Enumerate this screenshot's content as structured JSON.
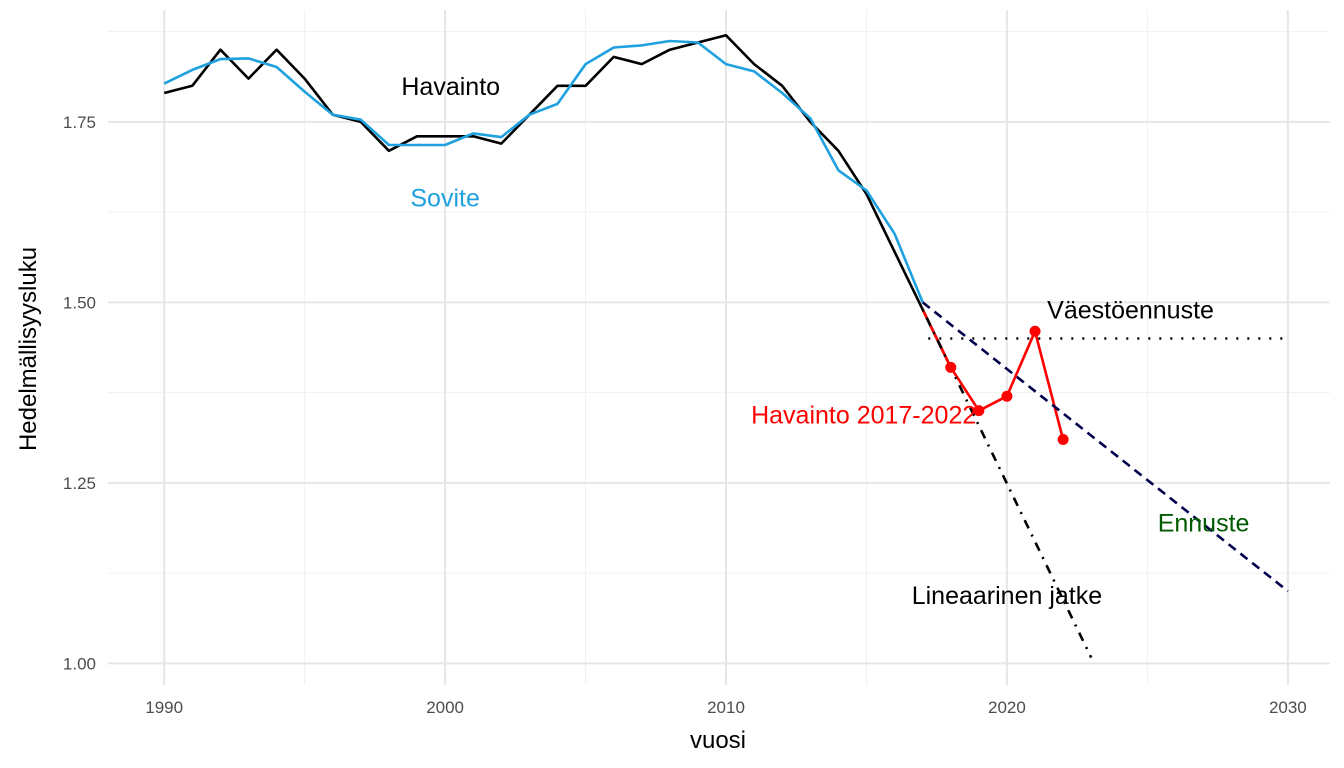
{
  "chart_data": {
    "type": "line",
    "title": "",
    "xlabel": "vuosi",
    "ylabel": "Hedelmällisyysluku",
    "xlim": [
      1988.0,
      2031.5
    ],
    "ylim": [
      0.97,
      1.905
    ],
    "grid": true,
    "x_ticks": [
      {
        "value": 1990,
        "label": "1990"
      },
      {
        "value": 2000,
        "label": "2000"
      },
      {
        "value": 2010,
        "label": "2010"
      },
      {
        "value": 2020,
        "label": "2020"
      },
      {
        "value": 2030,
        "label": "2030"
      }
    ],
    "y_ticks": [
      {
        "value": 1.0,
        "label": "1.00"
      },
      {
        "value": 1.25,
        "label": "1.25"
      },
      {
        "value": 1.5,
        "label": "1.50"
      },
      {
        "value": 1.75,
        "label": "1.75"
      }
    ],
    "x_minor": [
      1995,
      2005,
      2015,
      2025
    ],
    "y_minor": [
      1.125,
      1.375,
      1.625,
      1.875
    ],
    "series": [
      {
        "key": "havainto",
        "color": "#000000",
        "style": "solid",
        "x": [
          1990,
          1991,
          1992,
          1993,
          1994,
          1995,
          1996,
          1997,
          1998,
          1999,
          2000,
          2001,
          2002,
          2003,
          2004,
          2005,
          2006,
          2007,
          2008,
          2009,
          2010,
          2011,
          2012,
          2013,
          2014,
          2015,
          2016,
          2017,
          2018
        ],
        "y": [
          1.79,
          1.8,
          1.85,
          1.81,
          1.85,
          1.81,
          1.76,
          1.75,
          1.71,
          1.73,
          1.73,
          1.73,
          1.72,
          1.76,
          1.8,
          1.8,
          1.84,
          1.83,
          1.85,
          1.86,
          1.87,
          1.83,
          1.8,
          1.75,
          1.71,
          1.65,
          1.57,
          1.49,
          1.41
        ]
      },
      {
        "key": "sovite",
        "color": "#1fa1e0",
        "style": "solid",
        "x": [
          1990,
          1991,
          1992,
          1993,
          1994,
          1995,
          1996,
          1997,
          1998,
          1999,
          2000,
          2001,
          2002,
          2003,
          2004,
          2005,
          2006,
          2007,
          2008,
          2009,
          2010,
          2011,
          2012,
          2013,
          2014,
          2015,
          2016,
          2017
        ],
        "y": [
          1.803,
          1.822,
          1.837,
          1.838,
          1.826,
          1.792,
          1.76,
          1.753,
          1.718,
          1.718,
          1.718,
          1.734,
          1.729,
          1.76,
          1.775,
          1.83,
          1.853,
          1.856,
          1.862,
          1.86,
          1.83,
          1.82,
          1.79,
          1.755,
          1.683,
          1.655,
          1.595,
          1.5
        ]
      },
      {
        "key": "havainto-2017-2022",
        "color": "#ff0000",
        "style": "solid",
        "markers": true,
        "x": [
          2017,
          2018,
          2019,
          2020,
          2021,
          2022
        ],
        "y": [
          1.49,
          1.41,
          1.35,
          1.37,
          1.46,
          1.31
        ],
        "marker_x": [
          2018,
          2019,
          2020,
          2021,
          2022
        ],
        "marker_y": [
          1.41,
          1.35,
          1.37,
          1.46,
          1.31
        ]
      },
      {
        "key": "ennuste",
        "color": "#00004d",
        "style": "dashed",
        "x": [
          2017,
          2030
        ],
        "y": [
          1.5,
          1.1
        ]
      },
      {
        "key": "lineaarinen-jatke",
        "color": "#000000",
        "style": "dotdash",
        "x": [
          2017,
          2023
        ],
        "y": [
          1.49,
          1.008
        ]
      },
      {
        "key": "vaestoennuste",
        "color": "#000000",
        "style": "dotted",
        "x": [
          2017.2,
          2030
        ],
        "y": [
          1.45,
          1.45
        ]
      }
    ],
    "annotations": [
      {
        "key": "havainto",
        "text": "Havainto",
        "x": 2000.2,
        "y": 1.8,
        "color": "#000000",
        "anchor": "middle"
      },
      {
        "key": "sovite",
        "text": "Sovite",
        "x": 2000.0,
        "y": 1.645,
        "color": "#1fa1e0",
        "anchor": "middle"
      },
      {
        "key": "havainto-2017-2022",
        "text": "Havainto 2017-2022",
        "x": 2014.9,
        "y": 1.345,
        "color": "#ff0000",
        "anchor": "middle"
      },
      {
        "key": "vaestoennuste",
        "text": "Väestöennuste",
        "x": 2024.4,
        "y": 1.49,
        "color": "#000000",
        "anchor": "middle"
      },
      {
        "key": "ennuste",
        "text": "Ennuste",
        "x": 2027.0,
        "y": 1.195,
        "color": "#005a00",
        "anchor": "middle"
      },
      {
        "key": "lineaarinen-jatke",
        "text": "Lineaarinen jatke",
        "x": 2020.0,
        "y": 1.095,
        "color": "#000000",
        "anchor": "middle"
      }
    ]
  }
}
